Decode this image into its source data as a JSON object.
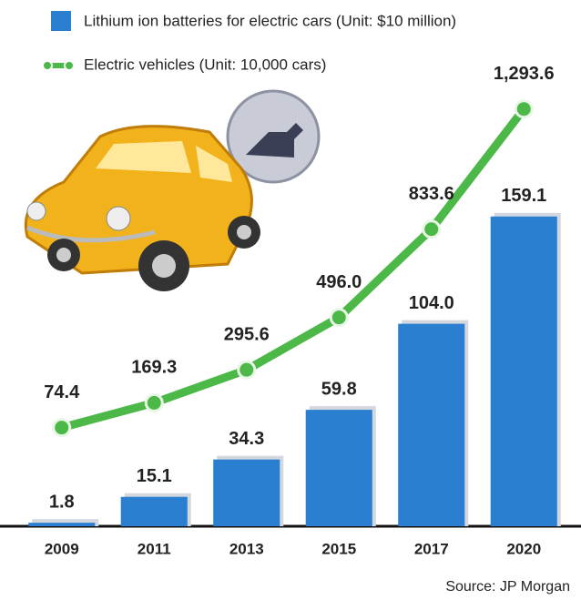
{
  "chart_data": {
    "type": "bar-line",
    "categories": [
      "2009",
      "2011",
      "2013",
      "2015",
      "2017",
      "2020"
    ],
    "series": [
      {
        "name": "Lithium ion batteries for electric cars  (Unit: $10 million)",
        "color": "#2a7fd0",
        "values": [
          1.8,
          15.1,
          34.3,
          59.8,
          104.0,
          159.1
        ],
        "value_labels": [
          "1.8",
          "15.1",
          "34.3",
          "59.8",
          "104.0",
          "159.1"
        ]
      },
      {
        "name": "Electric vehicles (Unit: 10,000 cars)",
        "color": "#4cb847",
        "axis": "y2",
        "values": [
          74.4,
          169.3,
          295.6,
          496.0,
          833.6,
          1293.6
        ],
        "value_labels": [
          "74.4",
          "169.3",
          "295.6",
          "496.0",
          "833.6",
          "1,293.6"
        ]
      }
    ],
    "ylim": [
      0,
      260
    ],
    "y2lim": [
      -303,
      1634
    ],
    "source": "Source: JP Morgan"
  }
}
